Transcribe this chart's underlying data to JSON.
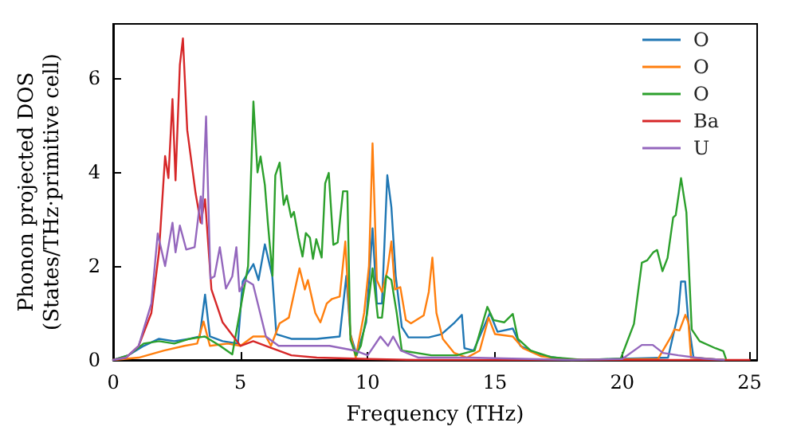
{
  "chart_data": {
    "type": "line",
    "xlabel": "Frequency (THz)",
    "ylabel": "Phonon projected DOS\n(States/THz·primitive cell)",
    "xlim": [
      0,
      25.3
    ],
    "ylim": [
      0,
      7.15
    ],
    "xticks": [
      0,
      5,
      10,
      15,
      20,
      25
    ],
    "yticks": [
      0,
      2,
      4,
      6
    ],
    "grid": false,
    "legend": "top right",
    "marker": "none",
    "line_style": "solid",
    "series": [
      {
        "name": "O",
        "color": "#1f77b4",
        "x": [
          0,
          0.6,
          1.2,
          1.8,
          2.4,
          3.0,
          3.4,
          3.61,
          3.8,
          4.3,
          4.9,
          5.09,
          5.51,
          5.71,
          5.96,
          6.25,
          6.41,
          7.0,
          8.0,
          8.9,
          9.16,
          9.32,
          9.57,
          9.94,
          10.19,
          10.36,
          10.56,
          10.77,
          10.93,
          11.1,
          11.34,
          11.6,
          12.4,
          12.9,
          13.42,
          13.7,
          13.8,
          14.16,
          14.8,
          15.1,
          15.7,
          16.0,
          16.8,
          18.0,
          21.8,
          22.2,
          22.31,
          22.47,
          22.6,
          22.8,
          24.0
        ],
        "values": [
          0,
          0.1,
          0.3,
          0.45,
          0.4,
          0.45,
          0.5,
          1.39,
          0.5,
          0.4,
          0.35,
          1.67,
          2.04,
          1.7,
          2.46,
          1.79,
          0.55,
          0.45,
          0.45,
          0.5,
          1.79,
          0.55,
          0.1,
          0.8,
          2.8,
          1.2,
          1.2,
          3.93,
          3.25,
          1.79,
          0.7,
          0.48,
          0.48,
          0.55,
          0.8,
          0.96,
          0.25,
          0.2,
          1.0,
          0.6,
          0.67,
          0.3,
          0.1,
          0,
          0.05,
          0.99,
          1.67,
          1.67,
          0.8,
          0.05,
          0
        ]
      },
      {
        "name": "O",
        "color": "#ff7f0e",
        "x": [
          0,
          1.0,
          2.0,
          2.8,
          3.3,
          3.55,
          3.8,
          4.5,
          5.0,
          5.5,
          6.0,
          6.2,
          6.54,
          6.9,
          7.32,
          7.53,
          7.65,
          7.94,
          8.14,
          8.39,
          8.6,
          8.9,
          9.12,
          9.32,
          9.53,
          9.86,
          10.05,
          10.19,
          10.36,
          10.56,
          10.77,
          10.93,
          11.07,
          11.28,
          11.5,
          11.7,
          12.2,
          12.4,
          12.54,
          12.7,
          12.95,
          13.4,
          13.9,
          14.4,
          14.75,
          15.0,
          15.7,
          16.1,
          16.8,
          18.0,
          21.4,
          21.9,
          22.05,
          22.25,
          22.48,
          22.6,
          22.7,
          24.0
        ],
        "values": [
          0,
          0.05,
          0.2,
          0.3,
          0.35,
          0.82,
          0.3,
          0.35,
          0.3,
          0.5,
          0.5,
          0.3,
          0.78,
          0.9,
          1.95,
          1.5,
          1.7,
          1.0,
          0.8,
          1.2,
          1.3,
          1.35,
          2.52,
          0.55,
          0.05,
          1.0,
          2.0,
          4.61,
          1.7,
          1.45,
          1.9,
          2.52,
          1.5,
          1.55,
          0.85,
          0.78,
          0.95,
          1.45,
          2.18,
          1.0,
          0.45,
          0.15,
          0.05,
          0.2,
          0.9,
          0.55,
          0.5,
          0.25,
          0.08,
          0,
          0.02,
          0.48,
          0.65,
          0.63,
          0.96,
          0.8,
          0.05,
          0
        ]
      },
      {
        "name": "O",
        "color": "#2ca02c",
        "x": [
          0,
          0.6,
          1.2,
          1.8,
          2.4,
          3.0,
          3.6,
          4.2,
          4.68,
          5.3,
          5.51,
          5.67,
          5.79,
          5.96,
          6.08,
          6.26,
          6.37,
          6.54,
          6.7,
          6.82,
          6.99,
          7.1,
          7.28,
          7.44,
          7.57,
          7.73,
          7.85,
          7.98,
          8.19,
          8.33,
          8.47,
          8.65,
          8.82,
          9.03,
          9.2,
          9.32,
          9.53,
          9.73,
          9.98,
          10.19,
          10.4,
          10.56,
          10.73,
          10.93,
          11.14,
          11.34,
          12.5,
          13.5,
          14.2,
          14.7,
          14.94,
          15.36,
          15.7,
          15.9,
          16.4,
          17.2,
          18.5,
          19.94,
          20.46,
          20.77,
          20.98,
          21.22,
          21.37,
          21.58,
          21.78,
          22.0,
          22.1,
          22.31,
          22.52,
          22.73,
          23.04,
          23.66,
          23.97,
          24.07
        ],
        "values": [
          0,
          0.1,
          0.35,
          0.4,
          0.35,
          0.45,
          0.5,
          0.3,
          0.12,
          2.0,
          5.5,
          3.99,
          4.33,
          3.72,
          2.9,
          1.79,
          3.93,
          4.2,
          3.3,
          3.5,
          3.04,
          3.15,
          2.6,
          2.2,
          2.7,
          2.6,
          2.15,
          2.57,
          2.18,
          3.76,
          3.98,
          2.45,
          2.5,
          3.59,
          3.59,
          0.43,
          0.1,
          0.3,
          1.0,
          1.95,
          0.9,
          0.9,
          1.79,
          1.7,
          1.0,
          0.2,
          0.1,
          0.1,
          0.2,
          1.13,
          0.85,
          0.8,
          0.98,
          0.45,
          0.2,
          0.06,
          0,
          0.03,
          0.77,
          2.07,
          2.12,
          2.29,
          2.34,
          1.89,
          2.17,
          3.03,
          3.08,
          3.87,
          3.14,
          0.65,
          0.4,
          0.25,
          0.19,
          0.03
        ]
      },
      {
        "name": "Ba",
        "color": "#d62728",
        "x": [
          0,
          0.5,
          1.0,
          1.5,
          1.8,
          2.04,
          2.17,
          2.33,
          2.45,
          2.62,
          2.74,
          2.91,
          3.24,
          3.44,
          3.61,
          3.86,
          4.3,
          5.0,
          5.5,
          6.0,
          7.0,
          8.0,
          10.0,
          12.0,
          25.0
        ],
        "values": [
          0,
          0.05,
          0.3,
          1.0,
          2.3,
          4.34,
          3.87,
          5.55,
          3.82,
          6.28,
          6.84,
          4.89,
          3.54,
          2.92,
          3.42,
          1.5,
          0.8,
          0.3,
          0.4,
          0.3,
          0.1,
          0.05,
          0.02,
          0,
          0
        ]
      },
      {
        "name": "U",
        "color": "#9467bd",
        "x": [
          0,
          0.5,
          1.0,
          1.5,
          1.75,
          2.04,
          2.33,
          2.45,
          2.62,
          2.87,
          3.2,
          3.44,
          3.49,
          3.65,
          3.82,
          3.98,
          4.19,
          4.43,
          4.68,
          4.84,
          4.96,
          5.21,
          5.5,
          6.0,
          6.5,
          7.5,
          8.5,
          9.5,
          10.0,
          10.5,
          10.8,
          11.0,
          11.3,
          12.0,
          14.0,
          18.0,
          20.0,
          20.77,
          21.2,
          21.6,
          22.2,
          23.2,
          24.0
        ],
        "values": [
          0,
          0.05,
          0.3,
          1.2,
          2.69,
          2.0,
          2.92,
          2.29,
          2.86,
          2.35,
          2.4,
          3.48,
          2.9,
          5.18,
          1.73,
          1.78,
          2.4,
          1.52,
          1.78,
          2.4,
          1.46,
          1.7,
          1.6,
          0.5,
          0.3,
          0.3,
          0.3,
          0.2,
          0.1,
          0.5,
          0.3,
          0.5,
          0.2,
          0.05,
          0.05,
          0,
          0.02,
          0.32,
          0.32,
          0.15,
          0.1,
          0.03,
          0
        ]
      }
    ]
  }
}
